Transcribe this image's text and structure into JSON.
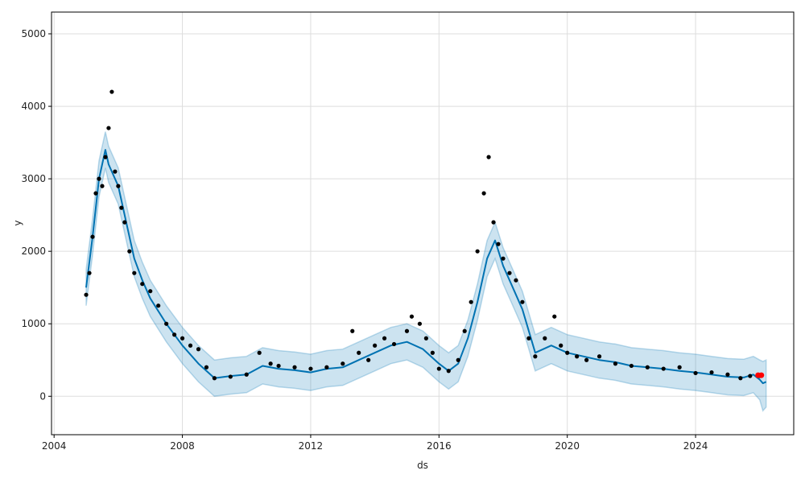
{
  "chart_data": {
    "type": "scatter",
    "xlabel": "ds",
    "ylabel": "y",
    "xlim": [
      2003.92,
      2027.06
    ],
    "ylim": [
      -530,
      5300
    ],
    "x_ticks": [
      2004,
      2008,
      2012,
      2016,
      2020,
      2024
    ],
    "x_tick_labels": [
      "2004",
      "2008",
      "2012",
      "2016",
      "2020",
      "2024"
    ],
    "y_ticks": [
      0,
      1000,
      2000,
      3000,
      4000,
      5000
    ],
    "y_tick_labels": [
      "0",
      "1000",
      "2000",
      "3000",
      "4000",
      "5000"
    ],
    "grid": true,
    "legend": "none",
    "colors": {
      "observed": "#000000",
      "forecast": "#0072B2",
      "uncertainty": "#0072B2",
      "highlight": "#ff0000",
      "grid": "#dddddd",
      "frame": "#000000"
    },
    "series": [
      {
        "role": "observed",
        "x": [
          2005.0,
          2005.1,
          2005.2,
          2005.3,
          2005.4,
          2005.5,
          2005.6,
          2005.7,
          2005.8,
          2005.9,
          2006.0,
          2006.1,
          2006.2,
          2006.35,
          2006.5,
          2006.75,
          2007.0,
          2007.25,
          2007.5,
          2007.75,
          2008.0,
          2008.25,
          2008.5,
          2008.75,
          2009.0,
          2009.5,
          2010.0,
          2010.4,
          2010.75,
          2011.0,
          2011.5,
          2012.0,
          2012.5,
          2013.0,
          2013.3,
          2013.5,
          2013.8,
          2014.0,
          2014.3,
          2014.6,
          2015.0,
          2015.15,
          2015.4,
          2015.6,
          2015.8,
          2016.0,
          2016.3,
          2016.6,
          2016.8,
          2017.0,
          2017.2,
          2017.4,
          2017.55,
          2017.7,
          2017.85,
          2018.0,
          2018.2,
          2018.4,
          2018.6,
          2018.8,
          2019.0,
          2019.3,
          2019.6,
          2019.8,
          2020.0,
          2020.3,
          2020.6,
          2021.0,
          2021.5,
          2022.0,
          2022.5,
          2023.0,
          2023.5,
          2024.0,
          2024.5,
          2025.0,
          2025.4,
          2025.7,
          2026.0
        ],
        "y": [
          1400,
          1700,
          2200,
          2800,
          3000,
          2900,
          3300,
          3700,
          4200,
          3100,
          2900,
          2600,
          2400,
          2000,
          1700,
          1550,
          1450,
          1250,
          1000,
          850,
          800,
          700,
          650,
          400,
          250,
          270,
          300,
          600,
          450,
          420,
          400,
          380,
          400,
          450,
          900,
          600,
          500,
          700,
          800,
          720,
          900,
          1100,
          1000,
          800,
          600,
          380,
          350,
          500,
          900,
          1300,
          2000,
          2800,
          3300,
          2400,
          2100,
          1900,
          1700,
          1600,
          1300,
          800,
          550,
          800,
          1100,
          700,
          600,
          550,
          500,
          550,
          450,
          420,
          400,
          380,
          400,
          320,
          330,
          300,
          250,
          280,
          280
        ]
      },
      {
        "role": "forecast",
        "x": [
          2005.0,
          2005.2,
          2005.4,
          2005.6,
          2005.7,
          2005.8,
          2006.0,
          2006.25,
          2006.5,
          2006.75,
          2007.0,
          2007.5,
          2008.0,
          2008.5,
          2009.0,
          2009.5,
          2010.0,
          2010.5,
          2011.0,
          2011.5,
          2012.0,
          2012.5,
          2013.0,
          2013.5,
          2014.0,
          2014.5,
          2015.0,
          2015.5,
          2016.0,
          2016.3,
          2016.6,
          2016.9,
          2017.2,
          2017.5,
          2017.75,
          2018.0,
          2018.3,
          2018.6,
          2019.0,
          2019.5,
          2020.0,
          2020.5,
          2021.0,
          2021.5,
          2022.0,
          2022.5,
          2023.0,
          2023.5,
          2024.0,
          2024.5,
          2025.0,
          2025.5,
          2025.8,
          2026.0,
          2026.1,
          2026.2
        ],
        "y": [
          1500,
          2200,
          3000,
          3400,
          3200,
          3100,
          2900,
          2400,
          1900,
          1600,
          1350,
          1000,
          700,
          450,
          250,
          280,
          300,
          420,
          380,
          360,
          330,
          380,
          400,
          500,
          600,
          700,
          750,
          650,
          450,
          350,
          450,
          800,
          1300,
          1900,
          2150,
          1800,
          1500,
          1200,
          600,
          700,
          600,
          550,
          500,
          470,
          420,
          400,
          380,
          350,
          330,
          300,
          270,
          260,
          300,
          230,
          180,
          200
        ],
        "upper": [
          1750,
          2450,
          3250,
          3650,
          3450,
          3350,
          3150,
          2650,
          2150,
          1850,
          1600,
          1250,
          950,
          700,
          500,
          530,
          550,
          670,
          630,
          610,
          580,
          630,
          650,
          750,
          850,
          950,
          1000,
          900,
          700,
          600,
          700,
          1050,
          1550,
          2150,
          2400,
          2050,
          1750,
          1450,
          850,
          950,
          850,
          800,
          750,
          720,
          670,
          650,
          630,
          600,
          580,
          550,
          520,
          510,
          550,
          500,
          480,
          500
        ],
        "lower": [
          1250,
          1950,
          2750,
          3150,
          2950,
          2850,
          2650,
          2150,
          1650,
          1350,
          1100,
          750,
          450,
          200,
          0,
          30,
          50,
          170,
          130,
          110,
          80,
          130,
          150,
          250,
          350,
          450,
          500,
          400,
          200,
          100,
          200,
          550,
          1050,
          1650,
          1900,
          1550,
          1250,
          950,
          350,
          450,
          350,
          300,
          250,
          220,
          170,
          150,
          130,
          100,
          80,
          50,
          20,
          10,
          50,
          -50,
          -200,
          -150
        ]
      },
      {
        "role": "highlight",
        "x": [
          2025.95,
          2026.05
        ],
        "y": [
          290,
          290
        ]
      }
    ]
  }
}
